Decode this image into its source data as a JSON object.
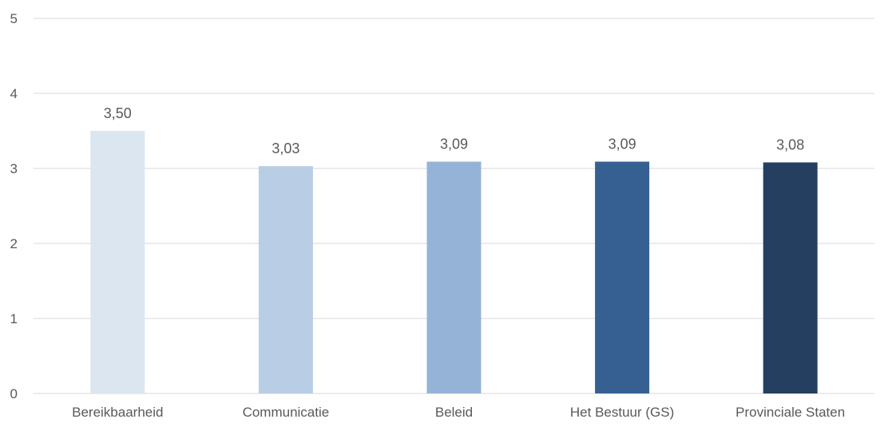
{
  "chart_data": {
    "type": "bar",
    "title": "",
    "xlabel": "",
    "ylabel": "",
    "ylim": [
      0,
      5
    ],
    "yticks": [
      0,
      1,
      2,
      3,
      4,
      5
    ],
    "grid": true,
    "legend": "none",
    "categories": [
      "Bereikbaarheid",
      "Communicatie",
      "Beleid",
      "Het Bestuur (GS)",
      "Provinciale Staten"
    ],
    "values": [
      3.5,
      3.03,
      3.09,
      3.09,
      3.08
    ],
    "value_labels": [
      "3,50",
      "3,03",
      "3,09",
      "3,09",
      "3,08"
    ],
    "tick_labels": [
      "0",
      "1",
      "2",
      "3",
      "4",
      "5"
    ],
    "colors": [
      "#dce6f1",
      "#b9cde5",
      "#95b3d7",
      "#376092",
      "#243f60"
    ],
    "gridline_color": "#d9d9d9",
    "text_color": "#595959"
  }
}
